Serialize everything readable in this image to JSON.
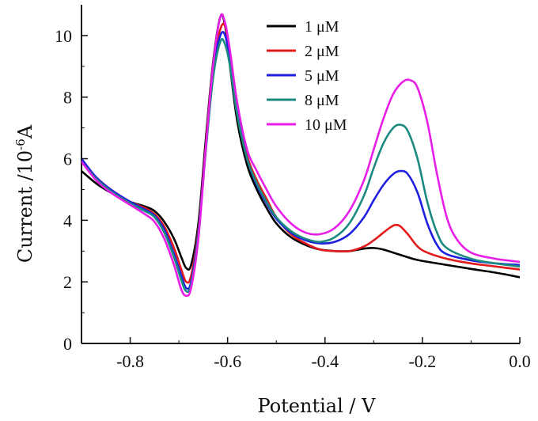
{
  "chart_data": {
    "type": "line",
    "xlabel": "Potential / V",
    "ylabel_main": "Current /10",
    "ylabel_exponent": "-6",
    "ylabel_unit": "A",
    "xlim": [
      -0.9,
      0.0
    ],
    "ylim": [
      0,
      11
    ],
    "x_ticks": [
      -0.8,
      -0.6,
      -0.4,
      -0.2,
      0.0
    ],
    "x_tick_labels": [
      "-0.8",
      "-0.6",
      "-0.4",
      "-0.2",
      "0.0"
    ],
    "y_ticks": [
      0,
      2,
      4,
      6,
      8,
      10
    ],
    "y_tick_labels": [
      "0",
      "2",
      "4",
      "6",
      "8",
      "10"
    ],
    "grid": false,
    "legend_position": "top-right",
    "series": [
      {
        "name": "1 μM",
        "color": "#000000",
        "x": [
          -0.9,
          -0.87,
          -0.84,
          -0.8,
          -0.77,
          -0.75,
          -0.73,
          -0.71,
          -0.695,
          -0.685,
          -0.675,
          -0.66,
          -0.645,
          -0.63,
          -0.615,
          -0.605,
          -0.595,
          -0.58,
          -0.56,
          -0.54,
          -0.52,
          -0.5,
          -0.47,
          -0.44,
          -0.41,
          -0.38,
          -0.35,
          -0.32,
          -0.3,
          -0.28,
          -0.26,
          -0.24,
          -0.22,
          -0.2,
          -0.15,
          -0.1,
          -0.05,
          0.0
        ],
        "y": [
          5.6,
          5.2,
          4.9,
          4.6,
          4.45,
          4.3,
          3.95,
          3.4,
          2.8,
          2.45,
          2.55,
          3.9,
          6.6,
          9.1,
          10.6,
          10.3,
          9.0,
          7.2,
          5.8,
          5.0,
          4.4,
          3.9,
          3.45,
          3.2,
          3.05,
          3.0,
          3.0,
          3.08,
          3.1,
          3.05,
          2.95,
          2.85,
          2.75,
          2.68,
          2.55,
          2.42,
          2.3,
          2.15
        ]
      },
      {
        "name": "2 μM",
        "color": "#e31a1c",
        "x": [
          -0.9,
          -0.87,
          -0.84,
          -0.8,
          -0.77,
          -0.75,
          -0.73,
          -0.71,
          -0.695,
          -0.685,
          -0.675,
          -0.66,
          -0.645,
          -0.63,
          -0.615,
          -0.605,
          -0.595,
          -0.58,
          -0.56,
          -0.54,
          -0.52,
          -0.5,
          -0.47,
          -0.44,
          -0.41,
          -0.38,
          -0.35,
          -0.32,
          -0.3,
          -0.28,
          -0.265,
          -0.255,
          -0.245,
          -0.23,
          -0.21,
          -0.19,
          -0.15,
          -0.1,
          -0.05,
          0.0
        ],
        "y": [
          5.9,
          5.4,
          5.0,
          4.6,
          4.4,
          4.2,
          3.8,
          3.1,
          2.4,
          2.0,
          2.2,
          3.7,
          6.4,
          9.0,
          10.2,
          10.3,
          9.4,
          7.6,
          6.1,
          5.3,
          4.7,
          4.1,
          3.55,
          3.25,
          3.05,
          3.0,
          3.0,
          3.15,
          3.35,
          3.6,
          3.78,
          3.85,
          3.8,
          3.55,
          3.15,
          2.95,
          2.75,
          2.6,
          2.5,
          2.4
        ]
      },
      {
        "name": "5 μM",
        "color": "#1f1fe0",
        "x": [
          -0.9,
          -0.87,
          -0.84,
          -0.8,
          -0.77,
          -0.75,
          -0.73,
          -0.71,
          -0.695,
          -0.685,
          -0.675,
          -0.66,
          -0.645,
          -0.63,
          -0.615,
          -0.605,
          -0.595,
          -0.58,
          -0.56,
          -0.54,
          -0.52,
          -0.5,
          -0.47,
          -0.44,
          -0.41,
          -0.38,
          -0.35,
          -0.32,
          -0.3,
          -0.28,
          -0.26,
          -0.245,
          -0.23,
          -0.21,
          -0.19,
          -0.17,
          -0.15,
          -0.1,
          -0.05,
          0.0
        ],
        "y": [
          6.0,
          5.4,
          5.0,
          4.6,
          4.35,
          4.15,
          3.7,
          2.9,
          2.2,
          1.8,
          2.0,
          3.6,
          6.3,
          8.9,
          10.0,
          10.0,
          9.2,
          7.5,
          6.0,
          5.15,
          4.55,
          4.05,
          3.6,
          3.35,
          3.25,
          3.3,
          3.55,
          4.1,
          4.65,
          5.15,
          5.5,
          5.6,
          5.5,
          4.9,
          3.9,
          3.2,
          2.9,
          2.7,
          2.6,
          2.55
        ]
      },
      {
        "name": "8 μM",
        "color": "#1b8a80",
        "x": [
          -0.9,
          -0.87,
          -0.84,
          -0.8,
          -0.77,
          -0.75,
          -0.73,
          -0.71,
          -0.695,
          -0.685,
          -0.675,
          -0.66,
          -0.645,
          -0.63,
          -0.615,
          -0.605,
          -0.595,
          -0.58,
          -0.56,
          -0.54,
          -0.52,
          -0.5,
          -0.47,
          -0.44,
          -0.41,
          -0.38,
          -0.35,
          -0.32,
          -0.3,
          -0.28,
          -0.26,
          -0.245,
          -0.23,
          -0.21,
          -0.19,
          -0.17,
          -0.15,
          -0.1,
          -0.05,
          0.0
        ],
        "y": [
          5.9,
          5.35,
          4.95,
          4.55,
          4.3,
          4.1,
          3.6,
          2.8,
          2.05,
          1.7,
          1.9,
          3.5,
          6.2,
          8.6,
          9.8,
          9.7,
          9.0,
          7.4,
          6.0,
          5.2,
          4.6,
          4.1,
          3.65,
          3.4,
          3.3,
          3.45,
          3.9,
          4.8,
          5.7,
          6.5,
          7.0,
          7.1,
          6.9,
          6.0,
          4.6,
          3.6,
          3.1,
          2.75,
          2.6,
          2.5
        ]
      },
      {
        "name": "10 μM",
        "color": "#e81ee8",
        "x": [
          -0.9,
          -0.87,
          -0.84,
          -0.8,
          -0.77,
          -0.75,
          -0.73,
          -0.71,
          -0.695,
          -0.685,
          -0.675,
          -0.66,
          -0.645,
          -0.63,
          -0.615,
          -0.605,
          -0.595,
          -0.58,
          -0.56,
          -0.54,
          -0.52,
          -0.5,
          -0.47,
          -0.44,
          -0.41,
          -0.38,
          -0.35,
          -0.32,
          -0.3,
          -0.28,
          -0.26,
          -0.24,
          -0.225,
          -0.21,
          -0.19,
          -0.17,
          -0.15,
          -0.13,
          -0.1,
          -0.05,
          0.0
        ],
        "y": [
          5.9,
          5.3,
          4.9,
          4.5,
          4.2,
          3.95,
          3.4,
          2.55,
          1.75,
          1.55,
          1.8,
          3.4,
          6.3,
          9.0,
          10.6,
          10.4,
          9.5,
          7.8,
          6.3,
          5.6,
          5.0,
          4.45,
          3.9,
          3.6,
          3.55,
          3.75,
          4.3,
          5.3,
          6.3,
          7.3,
          8.1,
          8.5,
          8.55,
          8.3,
          7.2,
          5.5,
          4.1,
          3.4,
          2.95,
          2.75,
          2.65
        ]
      }
    ]
  }
}
